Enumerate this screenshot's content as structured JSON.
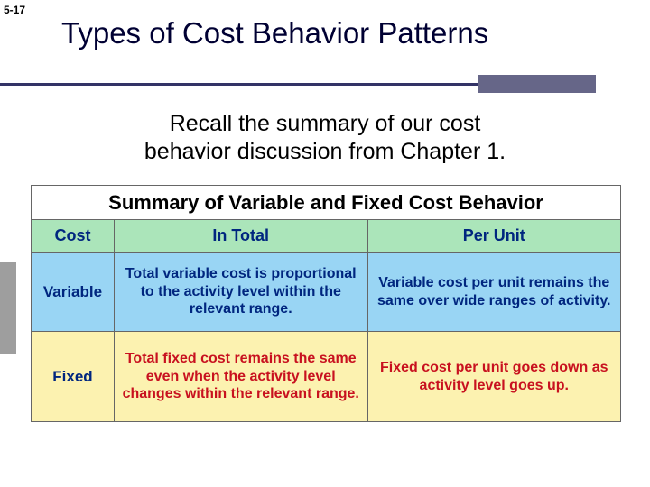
{
  "page_number": "5-17",
  "title": "Types of Cost Behavior Patterns",
  "subtitle_line1": "Recall the summary of our cost",
  "subtitle_line2": "behavior discussion from Chapter 1.",
  "colors": {
    "title_text": "#000033",
    "underline": "#333366",
    "accent": "#666688",
    "header_green": "#abe5ba",
    "row_blue": "#99d5f4",
    "row_tan": "#fcf2b0",
    "text_blue": "#00267f",
    "text_red": "#c8111f",
    "border": "#666666"
  },
  "table": {
    "title": "Summary of Variable and Fixed Cost Behavior",
    "headers": {
      "col1": "Cost",
      "col2": "In Total",
      "col3": "Per Unit"
    },
    "rows": [
      {
        "label": "Variable",
        "in_total": "Total variable cost is proportional to the activity level within the relevant range.",
        "per_unit": "Variable cost per unit remains the same over wide ranges of activity."
      },
      {
        "label": "Fixed",
        "in_total": "Total fixed cost remains the same even when the activity level changes within the relevant range.",
        "per_unit": "Fixed cost per unit goes down as activity level goes up."
      }
    ]
  }
}
